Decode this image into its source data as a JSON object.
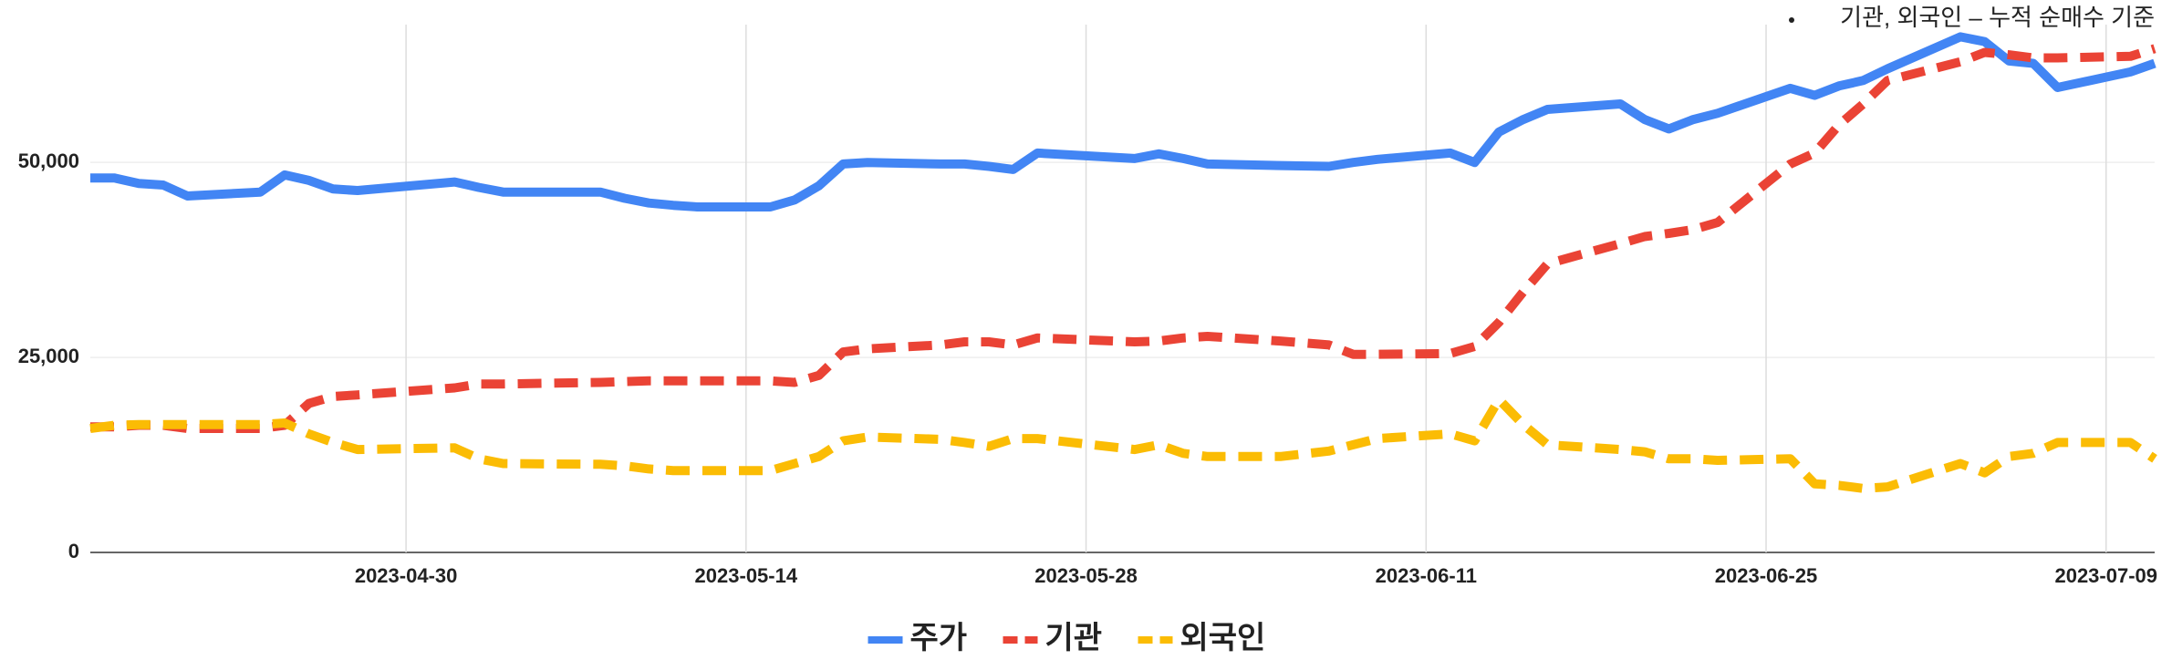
{
  "chart_data": {
    "type": "line",
    "annotation": "기관, 외국인 – 누적 순매수 기준",
    "x": [
      "2023-04-17",
      "2023-04-18",
      "2023-04-19",
      "2023-04-20",
      "2023-04-21",
      "2023-04-24",
      "2023-04-25",
      "2023-04-26",
      "2023-04-27",
      "2023-04-28",
      "2023-05-02",
      "2023-05-03",
      "2023-05-04",
      "2023-05-08",
      "2023-05-09",
      "2023-05-10",
      "2023-05-11",
      "2023-05-12",
      "2023-05-15",
      "2023-05-16",
      "2023-05-17",
      "2023-05-18",
      "2023-05-19",
      "2023-05-22",
      "2023-05-23",
      "2023-05-24",
      "2023-05-25",
      "2023-05-26",
      "2023-05-30",
      "2023-05-31",
      "2023-06-01",
      "2023-06-02",
      "2023-06-05",
      "2023-06-07",
      "2023-06-08",
      "2023-06-09",
      "2023-06-12",
      "2023-06-13",
      "2023-06-14",
      "2023-06-15",
      "2023-06-16",
      "2023-06-19",
      "2023-06-20",
      "2023-06-21",
      "2023-06-22",
      "2023-06-23",
      "2023-06-26",
      "2023-06-27",
      "2023-06-28",
      "2023-06-29",
      "2023-06-30",
      "2023-07-03",
      "2023-07-04",
      "2023-07-05",
      "2023-07-06",
      "2023-07-07",
      "2023-07-10",
      "2023-07-11"
    ],
    "series": [
      {
        "name": "주가",
        "color": "#4285f4",
        "dash": false,
        "values": [
          48000,
          48000,
          47300,
          47100,
          45700,
          46200,
          48400,
          47700,
          46600,
          46400,
          47500,
          46800,
          46200,
          46200,
          45400,
          44800,
          44500,
          44300,
          44300,
          45200,
          47000,
          49800,
          50000,
          49800,
          49800,
          49500,
          49100,
          51200,
          50500,
          51100,
          50500,
          49800,
          49600,
          49500,
          50000,
          50400,
          51200,
          50000,
          53900,
          55500,
          56800,
          57500,
          55500,
          54300,
          55500,
          56300,
          59500,
          58600,
          59800,
          60500,
          62000,
          66100,
          65500,
          63000,
          62700,
          59600,
          61600,
          62700
        ]
      },
      {
        "name": "기관",
        "color": "#ea4335",
        "dash": true,
        "values": [
          16100,
          16100,
          16300,
          16300,
          15900,
          15900,
          16300,
          19100,
          20000,
          20200,
          21100,
          21600,
          21600,
          21800,
          21900,
          22000,
          22000,
          22000,
          22000,
          21800,
          22700,
          25700,
          26100,
          26600,
          27000,
          27000,
          26600,
          27500,
          27000,
          27100,
          27500,
          27700,
          27100,
          26600,
          25400,
          25400,
          25500,
          26400,
          29500,
          33400,
          37000,
          39600,
          40500,
          40900,
          41400,
          42300,
          49800,
          51200,
          54800,
          57500,
          60500,
          62900,
          64100,
          63800,
          63400,
          63400,
          63600,
          64600
        ]
      },
      {
        "name": "외국인",
        "color": "#fbbc04",
        "dash": true,
        "values": [
          15900,
          16300,
          16400,
          16400,
          16400,
          16400,
          16600,
          15200,
          14100,
          13200,
          13400,
          12000,
          11400,
          11300,
          11100,
          10700,
          10500,
          10500,
          10500,
          11400,
          12300,
          14300,
          14800,
          14500,
          14100,
          13600,
          14600,
          14600,
          13200,
          13800,
          12700,
          12300,
          12300,
          13000,
          13800,
          14600,
          15200,
          14300,
          19600,
          16400,
          13800,
          13200,
          12900,
          12000,
          12000,
          11800,
          12000,
          8800,
          8600,
          8200,
          8400,
          11400,
          10200,
          12300,
          12700,
          14100,
          14100,
          12000
        ]
      }
    ],
    "xlim": [
      "2023-04-17",
      "2023-07-11"
    ],
    "xticks": [
      "2023-04-30",
      "2023-05-14",
      "2023-05-28",
      "2023-06-11",
      "2023-06-25",
      "2023-07-09"
    ],
    "ylim": [
      0,
      66500
    ],
    "yticks": [
      0,
      {
        "value": 25000,
        "label": "25,000"
      },
      {
        "value": 50000,
        "label": "50,000"
      }
    ],
    "grid": true
  }
}
